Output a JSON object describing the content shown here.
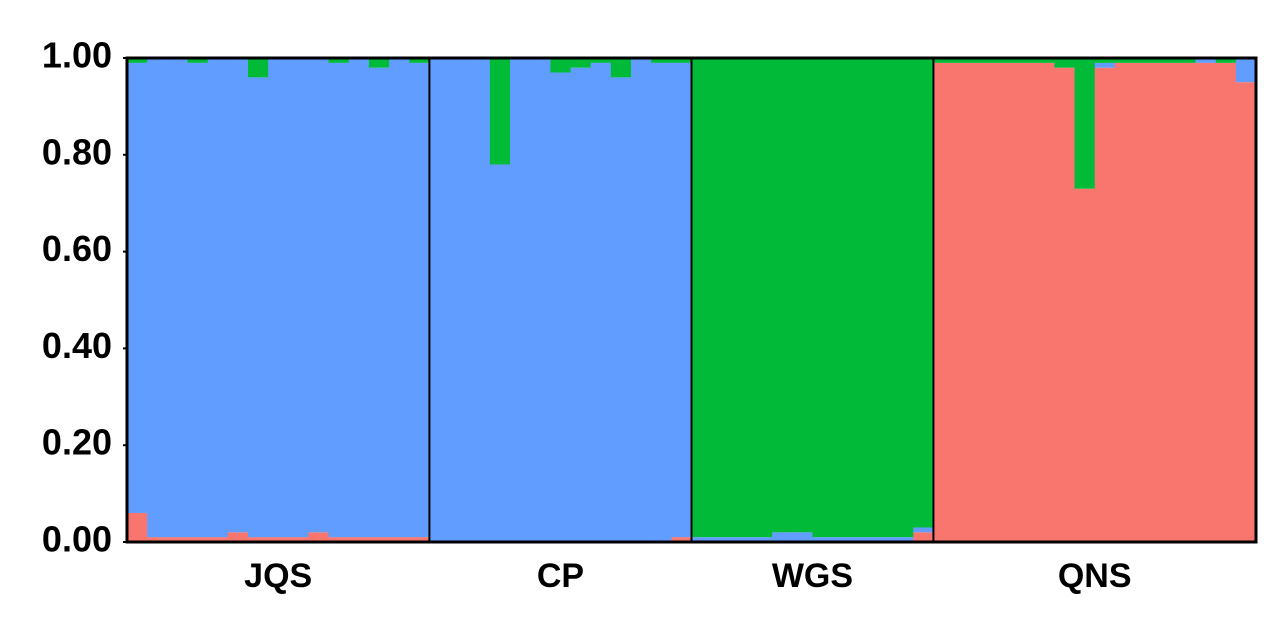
{
  "chart_data": {
    "type": "stacked_bar",
    "categories": [
      "JQS",
      "JQS",
      "JQS",
      "JQS",
      "JQS",
      "JQS",
      "JQS",
      "JQS",
      "JQS",
      "JQS",
      "JQS",
      "JQS",
      "JQS",
      "JQS",
      "JQS",
      "CP",
      "CP",
      "CP",
      "CP",
      "CP",
      "CP",
      "CP",
      "CP",
      "CP",
      "CP",
      "CP",
      "CP",
      "CP",
      "WGS",
      "WGS",
      "WGS",
      "WGS",
      "WGS",
      "WGS",
      "WGS",
      "WGS",
      "WGS",
      "WGS",
      "WGS",
      "WGS",
      "QNS",
      "QNS",
      "QNS",
      "QNS",
      "QNS",
      "QNS",
      "QNS",
      "QNS",
      "QNS",
      "QNS",
      "QNS",
      "QNS",
      "QNS",
      "QNS",
      "QNS",
      "QNS"
    ],
    "series": [
      {
        "color": "#f8766d",
        "values": [
          0.06,
          0.01,
          0.01,
          0.01,
          0.01,
          0.02,
          0.01,
          0.01,
          0.01,
          0.02,
          0.01,
          0.01,
          0.01,
          0.01,
          0.01,
          0,
          0,
          0,
          0,
          0,
          0,
          0,
          0,
          0,
          0,
          0,
          0,
          0.01,
          0,
          0,
          0,
          0,
          0,
          0,
          0,
          0,
          0,
          0,
          0,
          0.02,
          0.99,
          0.99,
          0.99,
          0.99,
          0.99,
          0.99,
          0.98,
          0.73,
          0.98,
          0.99,
          0.99,
          0.99,
          0.99,
          0.99,
          0.99,
          0.95
        ]
      },
      {
        "color": "#619cff",
        "values": [
          0.93,
          0.99,
          0.99,
          0.98,
          0.99,
          0.98,
          0.95,
          0.99,
          0.99,
          0.98,
          0.98,
          0.99,
          0.97,
          0.99,
          0.98,
          1,
          1,
          1,
          0.78,
          1,
          1,
          0.97,
          0.98,
          0.99,
          0.96,
          1,
          0.99,
          0.98,
          0.01,
          0.01,
          0.01,
          0.01,
          0.02,
          0.02,
          0.01,
          0.01,
          0.01,
          0.01,
          0.01,
          0.01,
          0,
          0,
          0,
          0,
          0,
          0,
          0,
          0,
          0.01,
          0,
          0,
          0,
          0,
          0.01,
          0,
          0.05
        ]
      },
      {
        "color": "#00ba38",
        "values": [
          0.01,
          0,
          0,
          0.01,
          0,
          0,
          0.04,
          0,
          0,
          0,
          0.01,
          0,
          0.02,
          0,
          0.01,
          0,
          0,
          0,
          0.22,
          0,
          0,
          0.03,
          0.02,
          0.01,
          0.04,
          0,
          0.01,
          0.01,
          0.99,
          0.99,
          0.99,
          0.99,
          0.98,
          0.98,
          0.99,
          0.99,
          0.99,
          0.99,
          0.99,
          0.97,
          0.01,
          0.01,
          0.01,
          0.01,
          0.01,
          0.01,
          0.02,
          0.27,
          0.01,
          0.01,
          0.01,
          0.01,
          0.01,
          0,
          0.01,
          0
        ]
      }
    ],
    "ylim": [
      0,
      1
    ],
    "yticks": [
      {
        "value": 0,
        "label": "0.00"
      },
      {
        "value": 0.2,
        "label": "0.20"
      },
      {
        "value": 0.4,
        "label": "0.40"
      },
      {
        "value": 0.6,
        "label": "0.60"
      },
      {
        "value": 0.8,
        "label": "0.80"
      },
      {
        "value": 1,
        "label": "1.00"
      }
    ],
    "grid": false
  }
}
